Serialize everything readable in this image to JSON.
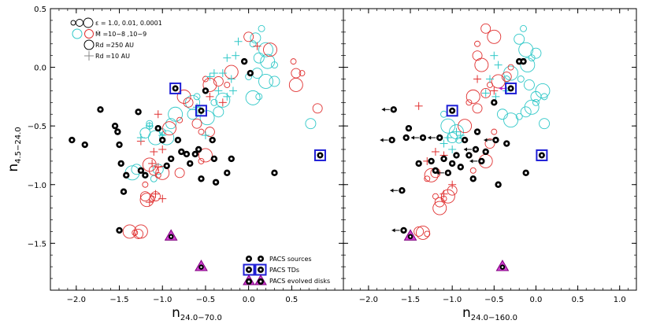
{
  "chart_data": [
    {
      "type": "scatter",
      "panel": "left",
      "xlabel": "n",
      "xlabel_sub": "24.0−70.0",
      "ylabel": "n",
      "ylabel_sub": "4.5−24.0",
      "xlim": [
        -2.3,
        1.1
      ],
      "ylim": [
        -1.9,
        0.5
      ],
      "xticks": [
        -2.0,
        -1.5,
        -1.0,
        -0.5,
        0.0,
        0.5
      ],
      "xtick_labels": [
        "−2.0",
        "−1.5",
        "−1.0",
        "−0.5",
        "0.0",
        "0.5"
      ],
      "yticks": [
        -1.5,
        -1.0,
        -0.5,
        0.0,
        0.5
      ],
      "ytick_labels": [
        "−1.5",
        "−1.0",
        "−0.5",
        "0.0",
        "0.5"
      ],
      "series": [
        {
          "name": "PACS sources",
          "marker": "dot-in-circle",
          "color": "#000000",
          "points": [
            [
              -2.05,
              -0.62
            ],
            [
              -1.9,
              -0.66
            ],
            [
              -1.72,
              -0.36
            ],
            [
              -1.55,
              -0.5
            ],
            [
              -1.52,
              -0.55
            ],
            [
              -1.5,
              -0.66
            ],
            [
              -1.48,
              -0.82
            ],
            [
              -1.45,
              -1.06
            ],
            [
              -1.42,
              -0.92
            ],
            [
              -1.28,
              -0.38
            ],
            [
              -1.25,
              -0.88
            ],
            [
              -1.2,
              -0.92
            ],
            [
              -1.05,
              -0.52
            ],
            [
              -1.0,
              -0.62
            ],
            [
              -0.95,
              -0.84
            ],
            [
              -0.9,
              -0.78
            ],
            [
              -0.82,
              -0.62
            ],
            [
              -0.78,
              -0.72
            ],
            [
              -0.72,
              -0.74
            ],
            [
              -0.68,
              -0.82
            ],
            [
              -0.62,
              -0.74
            ],
            [
              -0.58,
              -0.7
            ],
            [
              -0.55,
              -0.95
            ],
            [
              -0.5,
              -0.2
            ],
            [
              -0.42,
              -0.62
            ],
            [
              -0.4,
              -0.78
            ],
            [
              -0.38,
              -0.98
            ],
            [
              -0.25,
              -0.9
            ],
            [
              -0.2,
              -0.78
            ],
            [
              -0.05,
              0.05
            ],
            [
              0.02,
              -0.05
            ],
            [
              0.3,
              -0.9
            ],
            [
              -1.5,
              -1.39
            ]
          ]
        },
        {
          "name": "PACS TDs",
          "marker": "boxed",
          "color": "#1f1fd6",
          "points": [
            [
              -0.85,
              -0.18
            ],
            [
              -0.55,
              -0.37
            ],
            [
              0.83,
              -0.75
            ]
          ]
        },
        {
          "name": "PACS evolved disks",
          "marker": "triangle",
          "color": "#c020c0",
          "points": [
            [
              -0.9,
              -1.44
            ],
            [
              -0.55,
              -1.7
            ]
          ]
        }
      ],
      "models_cyan": [
        [
          0.15,
          0.33
        ],
        [
          0.08,
          0.25
        ],
        [
          0.2,
          0.15
        ],
        [
          0.05,
          0.2
        ],
        [
          0.12,
          0.08
        ],
        [
          0.22,
          0.05
        ],
        [
          0.3,
          0.02
        ],
        [
          0.1,
          -0.05
        ],
        [
          0.2,
          -0.12
        ],
        [
          0.0,
          -0.08
        ],
        [
          0.3,
          -0.12
        ],
        [
          0.05,
          -0.26
        ],
        [
          0.12,
          -0.25
        ],
        [
          0.72,
          -0.48
        ],
        [
          -0.65,
          -0.3
        ],
        [
          -0.6,
          -0.25
        ],
        [
          -0.35,
          -0.38
        ],
        [
          -0.3,
          -0.28
        ],
        [
          -0.4,
          -0.3
        ],
        [
          -0.9,
          -0.48
        ],
        [
          -0.85,
          -0.4
        ],
        [
          -1.15,
          -0.5
        ],
        [
          -1.2,
          -0.56
        ],
        [
          -1.08,
          -0.6
        ],
        [
          -1.0,
          -0.55
        ],
        [
          -1.3,
          -0.87
        ],
        [
          -1.35,
          -0.9
        ],
        [
          -1.1,
          -0.95
        ],
        [
          -1.05,
          -0.87
        ],
        [
          -0.95,
          -0.6
        ],
        [
          -1.15,
          -0.48
        ],
        [
          -0.65,
          -0.4
        ],
        [
          -0.48,
          -0.43
        ]
      ],
      "models_red": [
        [
          0.0,
          0.26
        ],
        [
          0.25,
          0.15
        ],
        [
          0.52,
          0.05
        ],
        [
          0.55,
          -0.05
        ],
        [
          0.55,
          -0.15
        ],
        [
          0.62,
          -0.05
        ],
        [
          0.8,
          -0.35
        ],
        [
          -0.2,
          -0.04
        ],
        [
          -0.25,
          -0.15
        ],
        [
          -0.35,
          -0.12
        ],
        [
          -0.45,
          -0.15
        ],
        [
          -0.5,
          -0.1
        ],
        [
          -0.7,
          -0.3
        ],
        [
          -0.75,
          -0.25
        ],
        [
          -0.8,
          -0.45
        ],
        [
          -0.6,
          -0.48
        ],
        [
          -0.92,
          -0.52
        ],
        [
          -0.55,
          -0.55
        ],
        [
          -0.45,
          -0.55
        ],
        [
          -0.5,
          -0.75
        ],
        [
          -0.55,
          -0.8
        ],
        [
          -0.8,
          -0.9
        ],
        [
          -1.0,
          -0.9
        ],
        [
          -1.05,
          -0.92
        ],
        [
          -1.1,
          -0.88
        ],
        [
          -1.15,
          -0.83
        ],
        [
          -1.2,
          -1.0
        ],
        [
          -1.2,
          -1.1
        ],
        [
          -1.18,
          -1.13
        ],
        [
          -1.12,
          -1.12
        ],
        [
          -1.08,
          -1.1
        ],
        [
          -1.38,
          -1.4
        ],
        [
          -1.32,
          -1.41
        ],
        [
          -1.28,
          -1.42
        ],
        [
          -1.25,
          -1.4
        ]
      ],
      "models_plus_red": [
        [
          0.1,
          0.18
        ],
        [
          -0.3,
          -0.3
        ],
        [
          -0.45,
          -0.25
        ],
        [
          -1.05,
          -0.4
        ],
        [
          -1.25,
          -0.63
        ],
        [
          -1.0,
          -0.7
        ],
        [
          -1.1,
          -0.72
        ],
        [
          -1.12,
          -0.82
        ],
        [
          -1.05,
          -0.85
        ],
        [
          -1.0,
          -1.12
        ],
        [
          -1.15,
          -1.15
        ],
        [
          -1.08,
          -1.08
        ]
      ],
      "models_plus_cyan": [
        [
          -0.12,
          0.22
        ],
        [
          -0.25,
          0.08
        ],
        [
          -0.15,
          0.1
        ],
        [
          -0.2,
          -0.1
        ],
        [
          -0.3,
          -0.05
        ],
        [
          -0.35,
          -0.2
        ],
        [
          -0.25,
          -0.25
        ],
        [
          -0.18,
          -0.2
        ],
        [
          -0.4,
          -0.05
        ],
        [
          -0.45,
          -0.08
        ],
        [
          -0.6,
          -0.34
        ],
        [
          -1.15,
          -0.5
        ],
        [
          -1.25,
          -0.6
        ],
        [
          -0.5,
          -0.58
        ],
        [
          -1.0,
          -0.58
        ]
      ],
      "legend_models": [
        {
          "symbol": "three open circles",
          "label": "ε = 1.0, 0.01, 0.0001"
        },
        {
          "symbol": "cyan and red circles",
          "label": "Ṁ =10−8 ,10−9"
        },
        {
          "symbol": "large circle",
          "label": "Rd =250 AU"
        },
        {
          "symbol": "plus",
          "label": "Rd =10 AU"
        }
      ],
      "legend_sources": [
        {
          "label": "PACS sources"
        },
        {
          "label": "PACS TDs"
        },
        {
          "label": "PACS evolved disks"
        }
      ]
    },
    {
      "type": "scatter",
      "panel": "right",
      "xlabel": "n",
      "xlabel_sub": "24.0−160.0",
      "xlim": [
        -2.3,
        1.2
      ],
      "xticks": [
        -2.0,
        -1.5,
        -1.0,
        -0.5,
        0.0,
        0.5,
        1.0
      ],
      "xtick_labels": [
        "−2.0",
        "−1.5",
        "−1.0",
        "−0.5",
        "0.0",
        "0.5",
        "1.0"
      ],
      "series": [
        {
          "name": "PACS sources",
          "marker": "dot-in-circle",
          "color": "#000000",
          "points": [
            [
              -1.72,
              -0.62
            ],
            [
              -1.7,
              -0.36
            ],
            [
              -1.52,
              -0.52
            ],
            [
              -1.55,
              -0.6
            ],
            [
              -1.6,
              -1.05
            ],
            [
              -1.4,
              -0.82
            ],
            [
              -1.35,
              -0.6
            ],
            [
              -1.25,
              -0.8
            ],
            [
              -1.2,
              -0.88
            ],
            [
              -1.15,
              -0.6
            ],
            [
              -1.1,
              -0.78
            ],
            [
              -1.05,
              -0.9
            ],
            [
              -1.0,
              -0.82
            ],
            [
              -0.95,
              -0.75
            ],
            [
              -0.9,
              -0.85
            ],
            [
              -0.85,
              -0.62
            ],
            [
              -0.8,
              -0.75
            ],
            [
              -0.75,
              -0.95
            ],
            [
              -0.72,
              -0.7
            ],
            [
              -0.7,
              -0.55
            ],
            [
              -0.65,
              -0.8
            ],
            [
              -0.6,
              -0.72
            ],
            [
              -0.5,
              -0.3
            ],
            [
              -0.48,
              -0.62
            ],
            [
              -0.45,
              -1.0
            ],
            [
              -0.35,
              -0.65
            ],
            [
              -0.12,
              -0.9
            ],
            [
              -0.2,
              0.05
            ],
            [
              -0.15,
              0.05
            ],
            [
              -1.58,
              -1.39
            ]
          ]
        },
        {
          "name": "PACS TDs",
          "marker": "boxed",
          "color": "#1f1fd6",
          "points": [
            [
              -1.0,
              -0.37
            ],
            [
              -0.3,
              -0.18
            ],
            [
              0.07,
              -0.75
            ]
          ]
        },
        {
          "name": "PACS evolved disks",
          "marker": "triangle",
          "color": "#c020c0",
          "points": [
            [
              -1.5,
              -1.44
            ],
            [
              -0.4,
              -1.7
            ]
          ]
        }
      ],
      "models_cyan": [
        [
          -0.15,
          0.33
        ],
        [
          -0.2,
          0.24
        ],
        [
          -0.12,
          0.15
        ],
        [
          -0.05,
          0.08
        ],
        [
          0.0,
          0.12
        ],
        [
          -0.1,
          0.02
        ],
        [
          -0.18,
          -0.1
        ],
        [
          -0.08,
          -0.15
        ],
        [
          0.08,
          -0.2
        ],
        [
          0.1,
          -0.25
        ],
        [
          0.0,
          -0.25
        ],
        [
          -0.3,
          -0.05
        ],
        [
          -0.35,
          -0.1
        ],
        [
          -0.4,
          -0.4
        ],
        [
          -0.3,
          -0.45
        ],
        [
          -0.2,
          -0.42
        ],
        [
          -0.12,
          -0.38
        ],
        [
          -0.05,
          -0.34
        ],
        [
          0.0,
          -0.3
        ],
        [
          0.1,
          -0.48
        ],
        [
          -0.95,
          -0.55
        ],
        [
          -0.92,
          -0.62
        ],
        [
          -1.0,
          -0.6
        ],
        [
          -1.05,
          -0.5
        ],
        [
          -1.1,
          -0.4
        ]
      ],
      "models_red": [
        [
          -0.6,
          0.33
        ],
        [
          -0.5,
          0.26
        ],
        [
          -0.7,
          0.2
        ],
        [
          -0.7,
          0.1
        ],
        [
          -0.65,
          0.02
        ],
        [
          -0.3,
          0.0
        ],
        [
          -0.35,
          -0.08
        ],
        [
          -0.45,
          -0.12
        ],
        [
          -0.55,
          -0.15
        ],
        [
          -0.6,
          -0.22
        ],
        [
          -0.75,
          -0.25
        ],
        [
          -0.8,
          -0.3
        ],
        [
          -0.7,
          -0.35
        ],
        [
          -0.85,
          -0.5
        ],
        [
          -0.5,
          -0.55
        ],
        [
          -0.55,
          -0.65
        ],
        [
          -0.6,
          -0.8
        ],
        [
          -0.75,
          -0.88
        ],
        [
          -1.2,
          -0.9
        ],
        [
          -1.25,
          -0.92
        ],
        [
          -1.3,
          -0.95
        ],
        [
          -1.0,
          -1.05
        ],
        [
          -1.05,
          -1.1
        ],
        [
          -1.1,
          -1.12
        ],
        [
          -1.15,
          -1.15
        ],
        [
          -1.15,
          -1.2
        ],
        [
          -1.2,
          -1.1
        ],
        [
          -1.4,
          -1.4
        ],
        [
          -1.35,
          -1.41
        ],
        [
          -1.3,
          -1.42
        ]
      ],
      "models_plus_red": [
        [
          -0.7,
          -0.1
        ],
        [
          -1.4,
          -0.33
        ],
        [
          -1.2,
          -0.72
        ],
        [
          -1.1,
          -0.75
        ],
        [
          -1.3,
          -0.8
        ],
        [
          -0.5,
          -0.2
        ],
        [
          -1.0,
          -1.0
        ],
        [
          -1.1,
          -1.08
        ]
      ],
      "models_plus_cyan": [
        [
          -0.5,
          0.1
        ],
        [
          -0.45,
          0.02
        ],
        [
          -0.55,
          -0.1
        ],
        [
          -0.6,
          -0.22
        ],
        [
          -0.48,
          -0.25
        ],
        [
          -0.35,
          -0.2
        ],
        [
          -0.95,
          -0.55
        ],
        [
          -1.05,
          -0.6
        ],
        [
          -1.1,
          -0.65
        ],
        [
          -1.0,
          -0.7
        ],
        [
          -0.9,
          -0.58
        ]
      ],
      "upper_limit_arrows": [
        [
          -1.72,
          -0.62
        ],
        [
          -1.7,
          -0.36
        ],
        [
          -1.6,
          -1.05
        ],
        [
          -1.35,
          -0.6
        ],
        [
          -1.15,
          -0.6
        ],
        [
          -1.05,
          -0.9
        ],
        [
          -0.72,
          -0.7
        ],
        [
          -0.65,
          -0.8
        ],
        [
          -0.48,
          -0.62
        ],
        [
          -0.3,
          -0.18
        ],
        [
          -1.58,
          -1.39
        ]
      ]
    }
  ]
}
